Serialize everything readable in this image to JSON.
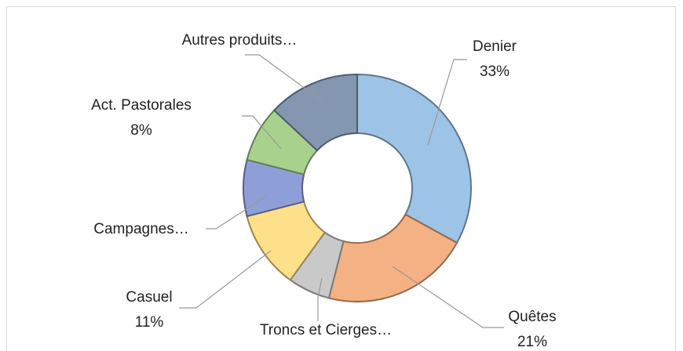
{
  "chart_data": {
    "type": "donut",
    "categories": [
      "Denier",
      "Quêtes",
      "Troncs et Cierges…",
      "Casuel",
      "Campagnes…",
      "Act. Pastorales",
      "Autres produits…"
    ],
    "values": [
      33,
      21,
      6,
      11,
      8,
      8,
      13
    ],
    "value_labels": [
      "33%",
      "21%",
      null,
      "11%",
      null,
      "8%",
      null
    ],
    "colors": [
      "#9dc3e6",
      "#f4b183",
      "#c9c9c9",
      "#ffe08a",
      "#8e9fd8",
      "#a9d18e",
      "#8497b0"
    ]
  }
}
